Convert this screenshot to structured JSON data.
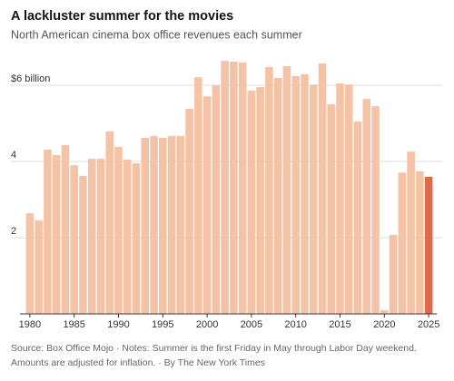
{
  "chart_data": {
    "type": "bar",
    "title": "A lackluster summer for the movies",
    "subtitle": "North American cinema box office revenues each summer",
    "footer": "Source: Box Office Mojo · Notes: Summer is the first Friday in May through Labor Day weekend. Amounts are adjusted for inflation. · By The New York Times",
    "x": [
      1980,
      1981,
      1982,
      1983,
      1984,
      1985,
      1986,
      1987,
      1988,
      1989,
      1990,
      1991,
      1992,
      1993,
      1994,
      1995,
      1996,
      1997,
      1998,
      1999,
      2000,
      2001,
      2002,
      2003,
      2004,
      2005,
      2006,
      2007,
      2008,
      2009,
      2010,
      2011,
      2012,
      2013,
      2014,
      2015,
      2016,
      2017,
      2018,
      2019,
      2020,
      2021,
      2022,
      2023,
      2024,
      2025
    ],
    "values": [
      2.64,
      2.45,
      4.31,
      4.17,
      4.43,
      3.9,
      3.62,
      4.07,
      4.07,
      4.79,
      4.38,
      4.05,
      3.95,
      4.62,
      4.67,
      4.62,
      4.67,
      4.67,
      5.38,
      6.21,
      5.71,
      6.0,
      6.64,
      6.62,
      6.6,
      5.86,
      5.95,
      6.48,
      6.19,
      6.5,
      6.24,
      6.29,
      6.02,
      6.57,
      5.5,
      6.05,
      6.02,
      5.05,
      5.64,
      5.45,
      0.1,
      2.07,
      3.71,
      4.26,
      3.74,
      3.6
    ],
    "color": "#f4c3a6",
    "highlight_x": 2025,
    "highlight_color": "#e0694a",
    "xlim": [
      1979.5,
      2025.5
    ],
    "xticks": [
      1980,
      1985,
      1990,
      1995,
      2000,
      2005,
      2010,
      2015,
      2020,
      2025
    ],
    "ylim": [
      0,
      7
    ],
    "yticks": [
      2,
      4,
      {
        "value": 6,
        "label": "$6 billion"
      }
    ],
    "grid": true
  }
}
